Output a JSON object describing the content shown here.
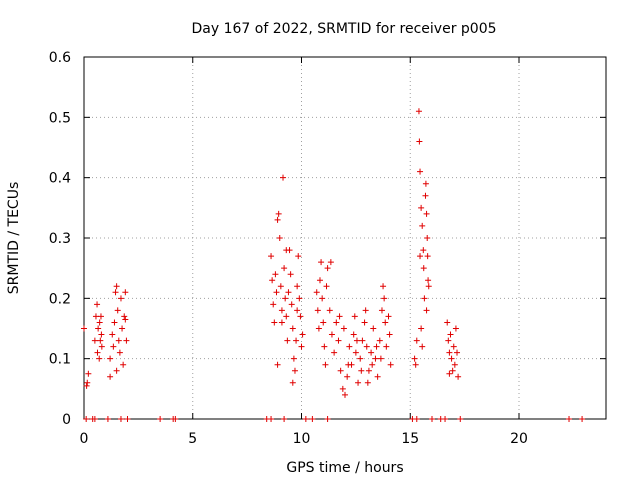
{
  "chart_data": {
    "type": "scatter",
    "title": "Day 167 of 2022, SRMTID for receiver p005",
    "xlabel": "GPS time / hours",
    "ylabel": "SRMTID / TECUs",
    "xlim": [
      0,
      24
    ],
    "ylim": [
      0,
      0.6
    ],
    "x_ticks": [
      0,
      5,
      10,
      15,
      20
    ],
    "x_tick_labels": [
      "0",
      "5",
      "10",
      "15",
      "20"
    ],
    "y_ticks": [
      0,
      0.1,
      0.2,
      0.3,
      0.4,
      0.5,
      0.6
    ],
    "y_tick_labels": [
      "0",
      "0.1",
      "0.2",
      "0.3",
      "0.4",
      "0.5",
      "0.6"
    ],
    "grid": true,
    "marker": "plus",
    "series": [
      {
        "name": "SRMTID",
        "color": "#e00000",
        "points": [
          [
            0.0,
            0.15
          ],
          [
            0.12,
            0.055
          ],
          [
            0.2,
            0.075
          ],
          [
            0.15,
            0.06
          ],
          [
            0.5,
            0.13
          ],
          [
            0.55,
            0.17
          ],
          [
            0.6,
            0.19
          ],
          [
            0.62,
            0.11
          ],
          [
            0.65,
            0.15
          ],
          [
            0.7,
            0.1
          ],
          [
            0.72,
            0.16
          ],
          [
            0.75,
            0.13
          ],
          [
            0.78,
            0.17
          ],
          [
            0.8,
            0.14
          ],
          [
            0.82,
            0.12
          ],
          [
            1.2,
            0.1
          ],
          [
            1.3,
            0.14
          ],
          [
            1.35,
            0.12
          ],
          [
            1.4,
            0.16
          ],
          [
            1.45,
            0.21
          ],
          [
            1.5,
            0.22
          ],
          [
            1.55,
            0.18
          ],
          [
            1.6,
            0.13
          ],
          [
            1.65,
            0.11
          ],
          [
            1.7,
            0.2
          ],
          [
            1.75,
            0.15
          ],
          [
            1.8,
            0.09
          ],
          [
            1.85,
            0.17
          ],
          [
            1.9,
            0.21
          ],
          [
            1.95,
            0.13
          ],
          [
            1.2,
            0.07
          ],
          [
            1.5,
            0.08
          ],
          [
            1.9,
            0.165
          ],
          [
            8.6,
            0.27
          ],
          [
            8.65,
            0.23
          ],
          [
            8.7,
            0.19
          ],
          [
            8.75,
            0.16
          ],
          [
            8.8,
            0.24
          ],
          [
            8.85,
            0.21
          ],
          [
            8.9,
            0.33
          ],
          [
            8.95,
            0.34
          ],
          [
            9.0,
            0.3
          ],
          [
            9.05,
            0.22
          ],
          [
            9.1,
            0.18
          ],
          [
            9.15,
            0.4
          ],
          [
            9.2,
            0.25
          ],
          [
            9.25,
            0.2
          ],
          [
            9.3,
            0.17
          ],
          [
            9.35,
            0.13
          ],
          [
            9.4,
            0.21
          ],
          [
            9.45,
            0.28
          ],
          [
            9.5,
            0.24
          ],
          [
            9.55,
            0.19
          ],
          [
            9.6,
            0.15
          ],
          [
            9.65,
            0.1
          ],
          [
            9.7,
            0.08
          ],
          [
            9.75,
            0.13
          ],
          [
            9.8,
            0.22
          ],
          [
            9.85,
            0.27
          ],
          [
            9.9,
            0.2
          ],
          [
            9.95,
            0.17
          ],
          [
            10.0,
            0.12
          ],
          [
            10.05,
            0.14
          ],
          [
            8.9,
            0.09
          ],
          [
            9.1,
            0.16
          ],
          [
            9.3,
            0.28
          ],
          [
            9.6,
            0.06
          ],
          [
            9.8,
            0.18
          ],
          [
            10.7,
            0.21
          ],
          [
            10.75,
            0.18
          ],
          [
            10.8,
            0.15
          ],
          [
            10.85,
            0.23
          ],
          [
            10.9,
            0.26
          ],
          [
            10.95,
            0.2
          ],
          [
            11.0,
            0.16
          ],
          [
            11.05,
            0.12
          ],
          [
            11.1,
            0.09
          ],
          [
            11.15,
            0.22
          ],
          [
            11.2,
            0.25
          ],
          [
            11.3,
            0.18
          ],
          [
            11.4,
            0.14
          ],
          [
            11.5,
            0.11
          ],
          [
            11.6,
            0.16
          ],
          [
            11.7,
            0.13
          ],
          [
            11.8,
            0.08
          ],
          [
            11.9,
            0.05
          ],
          [
            12.0,
            0.04
          ],
          [
            12.1,
            0.07
          ],
          [
            12.2,
            0.12
          ],
          [
            12.3,
            0.09
          ],
          [
            12.4,
            0.14
          ],
          [
            12.5,
            0.11
          ],
          [
            12.6,
            0.06
          ],
          [
            12.7,
            0.1
          ],
          [
            12.8,
            0.13
          ],
          [
            12.9,
            0.16
          ],
          [
            13.0,
            0.12
          ],
          [
            13.1,
            0.08
          ],
          [
            13.2,
            0.11
          ],
          [
            13.3,
            0.15
          ],
          [
            13.4,
            0.1
          ],
          [
            13.5,
            0.07
          ],
          [
            13.6,
            0.13
          ],
          [
            13.7,
            0.18
          ],
          [
            13.75,
            0.22
          ],
          [
            13.8,
            0.2
          ],
          [
            13.85,
            0.16
          ],
          [
            13.9,
            0.12
          ],
          [
            14.0,
            0.17
          ],
          [
            14.05,
            0.14
          ],
          [
            14.1,
            0.09
          ],
          [
            11.35,
            0.26
          ],
          [
            11.95,
            0.15
          ],
          [
            12.15,
            0.09
          ],
          [
            12.55,
            0.13
          ],
          [
            12.75,
            0.08
          ],
          [
            13.05,
            0.06
          ],
          [
            13.25,
            0.09
          ],
          [
            13.45,
            0.12
          ],
          [
            13.65,
            0.1
          ],
          [
            12.45,
            0.17
          ],
          [
            12.95,
            0.18
          ],
          [
            11.75,
            0.17
          ],
          [
            15.2,
            0.1
          ],
          [
            15.25,
            0.09
          ],
          [
            15.3,
            0.13
          ],
          [
            15.4,
            0.51
          ],
          [
            15.42,
            0.46
          ],
          [
            15.45,
            0.41
          ],
          [
            15.5,
            0.35
          ],
          [
            15.55,
            0.32
          ],
          [
            15.6,
            0.28
          ],
          [
            15.62,
            0.25
          ],
          [
            15.65,
            0.2
          ],
          [
            15.7,
            0.37
          ],
          [
            15.72,
            0.39
          ],
          [
            15.75,
            0.34
          ],
          [
            15.78,
            0.3
          ],
          [
            15.8,
            0.27
          ],
          [
            15.82,
            0.23
          ],
          [
            15.85,
            0.22
          ],
          [
            15.5,
            0.15
          ],
          [
            15.55,
            0.12
          ],
          [
            15.45,
            0.27
          ],
          [
            15.75,
            0.18
          ],
          [
            16.7,
            0.16
          ],
          [
            16.75,
            0.13
          ],
          [
            16.8,
            0.11
          ],
          [
            16.85,
            0.14
          ],
          [
            16.9,
            0.1
          ],
          [
            16.95,
            0.08
          ],
          [
            17.0,
            0.12
          ],
          [
            17.05,
            0.09
          ],
          [
            17.1,
            0.15
          ],
          [
            17.15,
            0.11
          ],
          [
            17.2,
            0.07
          ],
          [
            16.8,
            0.075
          ],
          [
            0.1,
            0
          ],
          [
            0.4,
            0
          ],
          [
            0.5,
            0
          ],
          [
            1.1,
            0
          ],
          [
            1.7,
            0
          ],
          [
            2.0,
            0
          ],
          [
            3.5,
            0
          ],
          [
            4.1,
            0
          ],
          [
            4.2,
            0
          ],
          [
            8.4,
            0
          ],
          [
            8.6,
            0
          ],
          [
            9.2,
            0
          ],
          [
            10.2,
            0
          ],
          [
            10.5,
            0
          ],
          [
            11.2,
            0
          ],
          [
            15.1,
            0
          ],
          [
            15.3,
            0
          ],
          [
            16.0,
            0
          ],
          [
            16.4,
            0
          ],
          [
            16.6,
            0
          ],
          [
            17.3,
            0
          ],
          [
            22.3,
            0
          ],
          [
            22.9,
            0
          ]
        ]
      }
    ]
  }
}
